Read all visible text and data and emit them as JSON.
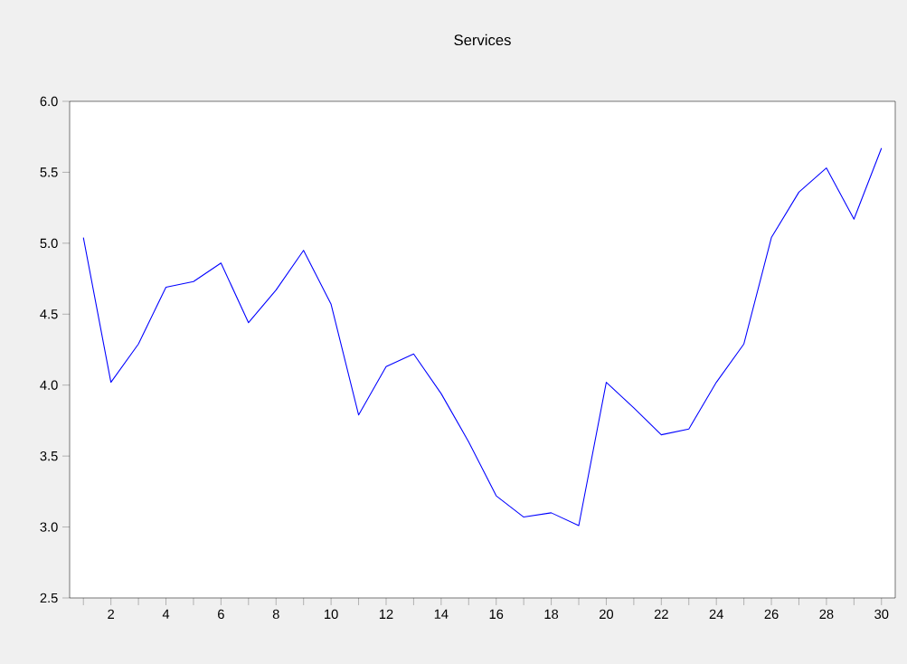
{
  "chart_data": {
    "type": "line",
    "title": "Services",
    "x": [
      1,
      2,
      3,
      4,
      5,
      6,
      7,
      8,
      9,
      10,
      11,
      12,
      13,
      14,
      15,
      16,
      17,
      18,
      19,
      20,
      21,
      22,
      23,
      24,
      25,
      26,
      27,
      28,
      29,
      30
    ],
    "series": [
      {
        "color": "#0000ff",
        "values": [
          5.04,
          4.02,
          4.29,
          4.69,
          4.73,
          4.86,
          4.44,
          4.67,
          4.95,
          4.57,
          3.79,
          4.13,
          4.22,
          3.94,
          3.6,
          3.22,
          3.07,
          3.1,
          3.01,
          4.02,
          3.84,
          3.65,
          3.69,
          4.02,
          4.29,
          5.04,
          5.36,
          5.53,
          5.17,
          5.67
        ]
      }
    ],
    "xlim": [
      0.5,
      30.5
    ],
    "ylim": [
      2.5,
      6.0
    ],
    "xticks": [
      {
        "value": 1,
        "label": null
      },
      2,
      {
        "value": 3,
        "label": null
      },
      4,
      {
        "value": 5,
        "label": null
      },
      6,
      {
        "value": 7,
        "label": null
      },
      8,
      {
        "value": 9,
        "label": null
      },
      10,
      {
        "value": 11,
        "label": null
      },
      12,
      {
        "value": 13,
        "label": null
      },
      14,
      {
        "value": 15,
        "label": null
      },
      16,
      {
        "value": 17,
        "label": null
      },
      18,
      {
        "value": 19,
        "label": null
      },
      20,
      {
        "value": 21,
        "label": null
      },
      22,
      {
        "value": 23,
        "label": null
      },
      24,
      {
        "value": 25,
        "label": null
      },
      26,
      {
        "value": 27,
        "label": null
      },
      28,
      {
        "value": 29,
        "label": null
      },
      30
    ],
    "yticks": [
      {
        "value": 2.5,
        "label": "2.5"
      },
      {
        "value": 3.0,
        "label": "3.0"
      },
      {
        "value": 3.5,
        "label": "3.5"
      },
      {
        "value": 4.0,
        "label": "4.0"
      },
      {
        "value": 4.5,
        "label": "4.5"
      },
      {
        "value": 5.0,
        "label": "5.0"
      },
      {
        "value": 5.5,
        "label": "5.5"
      },
      {
        "value": 6.0,
        "label": "6.0"
      }
    ]
  }
}
